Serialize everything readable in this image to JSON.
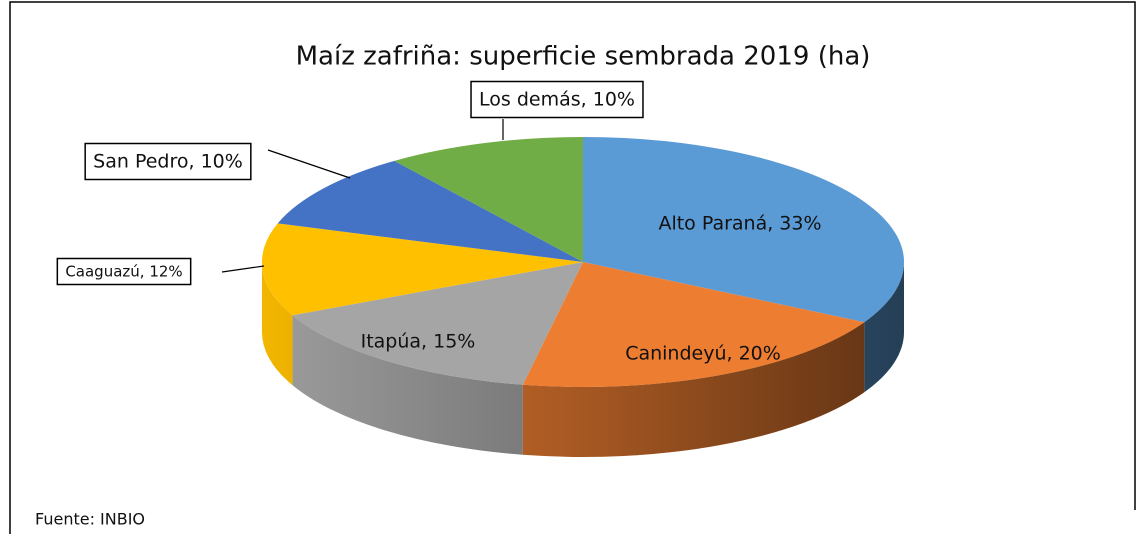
{
  "chart_data": {
    "type": "pie3d",
    "title": "Maíz zafriña: superficie sembrada 2019 (ha)",
    "categories": [
      "Alto Paraná",
      "Canindeyú",
      "Itapúa",
      "Caaguazú",
      "San Pedro",
      "Los demás"
    ],
    "values": [
      33,
      20,
      15,
      12,
      10,
      10
    ],
    "value_labels": [
      "Alto Paraná, 33%",
      "Canindeyú, 20%",
      "Itapúa, 15%",
      "Caaguazú, 12%",
      "San Pedro, 10%",
      "Los demás, 10%"
    ],
    "colors": [
      "#5b9bd5",
      "#ed7d31",
      "#a5a5a5",
      "#ffc000",
      "#4472c4",
      "#70ad47"
    ],
    "source": "Fuente: INBIO"
  }
}
